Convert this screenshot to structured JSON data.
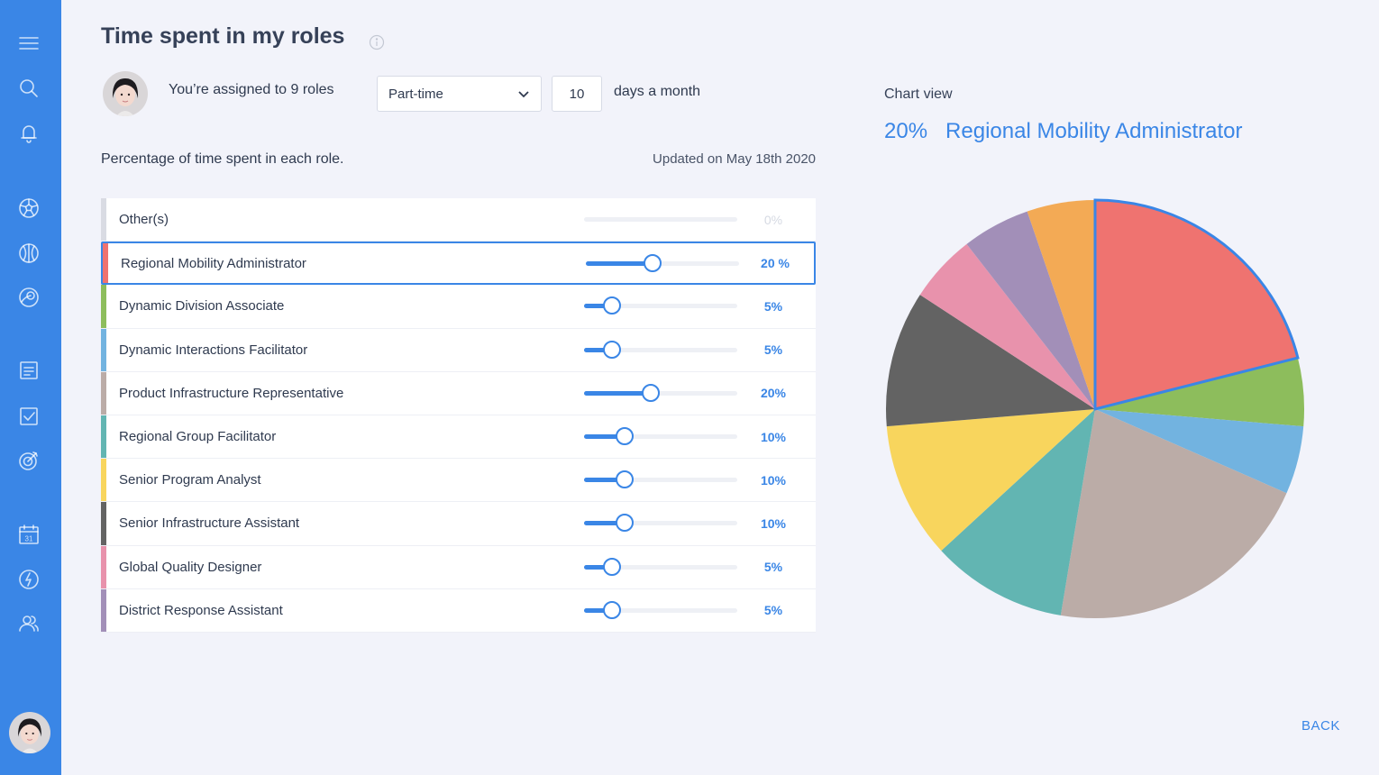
{
  "page": {
    "title": "Time spent in my roles",
    "assigned_text": "You’re assigned to 9 roles",
    "employment_type": "Part-time",
    "days_value": "10",
    "days_label": "days a month",
    "section_label": "Percentage of time spent in each role.",
    "updated_label": "Updated on May 18th 2020"
  },
  "roles": [
    {
      "name": "Other(s)",
      "percent": 0,
      "label": "0%",
      "color": "#d9dbe3"
    },
    {
      "name": "Regional Mobility Administrator",
      "percent": 20,
      "label": "20 %",
      "color": "#ef7370",
      "selected": true
    },
    {
      "name": "Dynamic Division Associate",
      "percent": 5,
      "label": "5%",
      "color": "#8dbd5c"
    },
    {
      "name": "Dynamic Interactions Facilitator",
      "percent": 5,
      "label": "5%",
      "color": "#72b3e0"
    },
    {
      "name": "Product Infrastructure Representative",
      "percent": 20,
      "label": "20%",
      "color": "#bbaca7"
    },
    {
      "name": "Regional Group Facilitator",
      "percent": 10,
      "label": "10%",
      "color": "#62b5b2"
    },
    {
      "name": "Senior Program Analyst",
      "percent": 10,
      "label": "10%",
      "color": "#f8d55d"
    },
    {
      "name": "Senior Infrastructure Assistant",
      "percent": 10,
      "label": "10%",
      "color": "#636363"
    },
    {
      "name": "Global Quality Designer",
      "percent": 5,
      "label": "5%",
      "color": "#e892ac"
    },
    {
      "name": "District Response Assistant",
      "percent": 5,
      "label": "5%",
      "color": "#a28fb8"
    }
  ],
  "chart": {
    "view_label": "Chart view",
    "selected_percent": "20%",
    "selected_role": "Regional Mobility Administrator",
    "extra_slice_color": "#f3aa55",
    "extra_slice_percent": 5
  },
  "chart_data": {
    "type": "pie",
    "categories": [
      "Regional Mobility Administrator",
      "Dynamic Division Associate",
      "Dynamic Interactions Facilitator",
      "Product Infrastructure Representative",
      "Regional Group Facilitator",
      "Senior Program Analyst",
      "Senior Infrastructure Assistant",
      "Global Quality Designer",
      "District Response Assistant",
      ""
    ],
    "values": [
      20,
      5,
      5,
      20,
      10,
      10,
      10,
      5,
      5,
      5
    ],
    "colors": [
      "#ef7370",
      "#8dbd5c",
      "#72b3e0",
      "#bbaca7",
      "#62b5b2",
      "#f8d55d",
      "#636363",
      "#e892ac",
      "#a28fb8",
      "#f3aa55"
    ],
    "highlighted": "Regional Mobility Administrator"
  },
  "nav": {
    "back_label": "BACK"
  },
  "sidebar_icons": [
    "menu-icon",
    "search-icon",
    "bell-icon",
    "football-icon",
    "basketball-icon",
    "target-icon",
    "document-icon",
    "checkbox-icon",
    "goal-icon",
    "calendar-icon",
    "lightning-icon",
    "users-icon"
  ],
  "calendar_day": "31"
}
